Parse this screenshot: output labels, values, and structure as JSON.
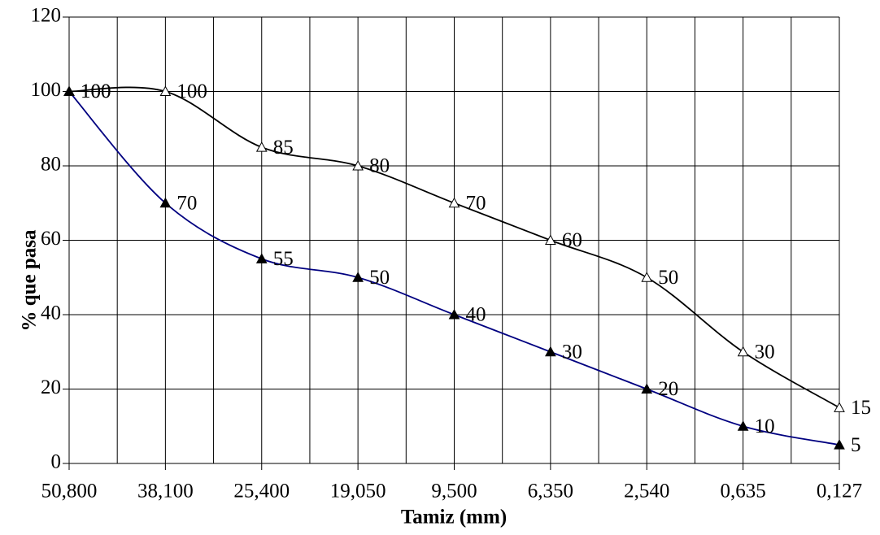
{
  "chart_data": {
    "type": "line",
    "x_label": "Tamiz (mm)",
    "y_label": "% que pasa",
    "categories": [
      "50,800",
      "38,100",
      "25,400",
      "19,050",
      "9,500",
      "6,350",
      "2,540",
      "0,635",
      "0,127"
    ],
    "series": [
      {
        "color": "#000000",
        "marker": "triangle-open",
        "values": [
          100,
          100,
          85,
          80,
          70,
          60,
          50,
          30,
          15
        ]
      },
      {
        "color": "#000080",
        "marker": "triangle-filled",
        "values": [
          100,
          70,
          55,
          50,
          40,
          30,
          20,
          10,
          5
        ]
      }
    ],
    "ylim": [
      0,
      120
    ],
    "yticks": [
      0,
      20,
      40,
      60,
      80,
      100,
      120
    ],
    "grid": true,
    "smooth": true,
    "data_labels": true
  }
}
